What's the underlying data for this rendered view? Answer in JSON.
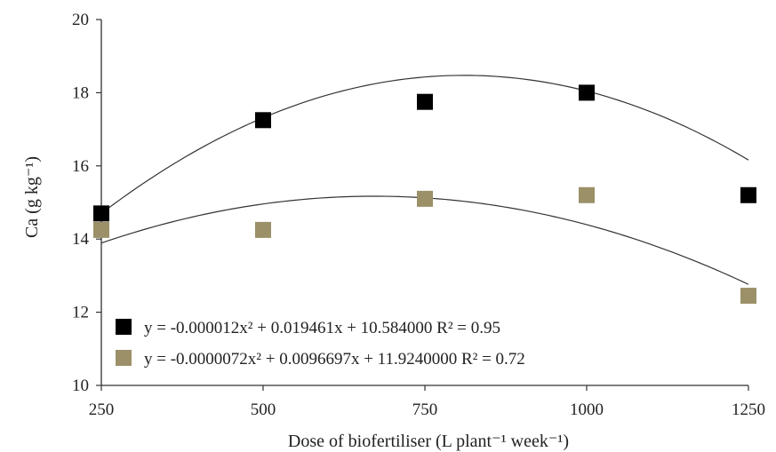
{
  "chart_data": {
    "type": "scatter",
    "title": "",
    "xlabel": "Dose of biofertiliser (L plant⁻¹ week⁻¹)",
    "ylabel": "Ca (g kg⁻¹)",
    "xlim": [
      250,
      1250
    ],
    "ylim": [
      10,
      20
    ],
    "xticks": [
      250,
      500,
      750,
      1000,
      1250
    ],
    "yticks": [
      10,
      12,
      14,
      16,
      18,
      20
    ],
    "grid": false,
    "legend": "bottom-left",
    "series": [
      {
        "color": "#000000",
        "x": [
          250,
          500,
          750,
          1000,
          1250
        ],
        "y": [
          14.7,
          17.25,
          17.75,
          18.0,
          15.2
        ],
        "equation": "y = -0.000012x² + 0.019461x + 10.584000 R² = 0.95",
        "fit": {
          "a": -1.2e-05,
          "b": 0.019461,
          "c": 10.584
        }
      },
      {
        "color": "#9b9068",
        "x": [
          250,
          500,
          750,
          1000,
          1250
        ],
        "y": [
          14.25,
          14.25,
          15.1,
          15.2,
          12.45
        ],
        "equation": "y = -0.0000072x² + 0.0096697x + 11.9240000 R² = 0.72",
        "fit": {
          "a": -7.2e-06,
          "b": 0.0096697,
          "c": 11.924
        }
      }
    ]
  }
}
